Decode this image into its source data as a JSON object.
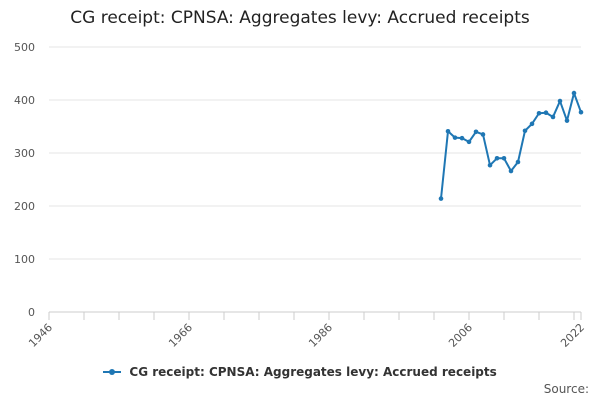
{
  "chart_data": {
    "type": "line",
    "title": "CG receipt: CPNSA: Aggregates levy: Accrued receipts",
    "xlabel": "",
    "ylabel": "",
    "xlim": [
      1946,
      2022
    ],
    "ylim": [
      0,
      500
    ],
    "x_ticks": [
      "1946",
      "1966",
      "1986",
      "2006",
      "2022"
    ],
    "y_ticks": [
      "0",
      "100",
      "200",
      "300",
      "400",
      "500"
    ],
    "grid": "horizontal",
    "legend": "bottom",
    "series": [
      {
        "name": "CG receipt: CPNSA: Aggregates levy: Accrued receipts",
        "color": "#1F77B4",
        "x": [
          2002,
          2003,
          2004,
          2005,
          2006,
          2007,
          2008,
          2009,
          2010,
          2011,
          2012,
          2013,
          2014,
          2015,
          2016,
          2017,
          2018,
          2019,
          2020,
          2021,
          2022
        ],
        "y": [
          214,
          341,
          329,
          328,
          321,
          340,
          335,
          277,
          290,
          290,
          266,
          283,
          342,
          355,
          375,
          376,
          368,
          398,
          361,
          413,
          377
        ]
      }
    ]
  },
  "source_label": "Source:"
}
